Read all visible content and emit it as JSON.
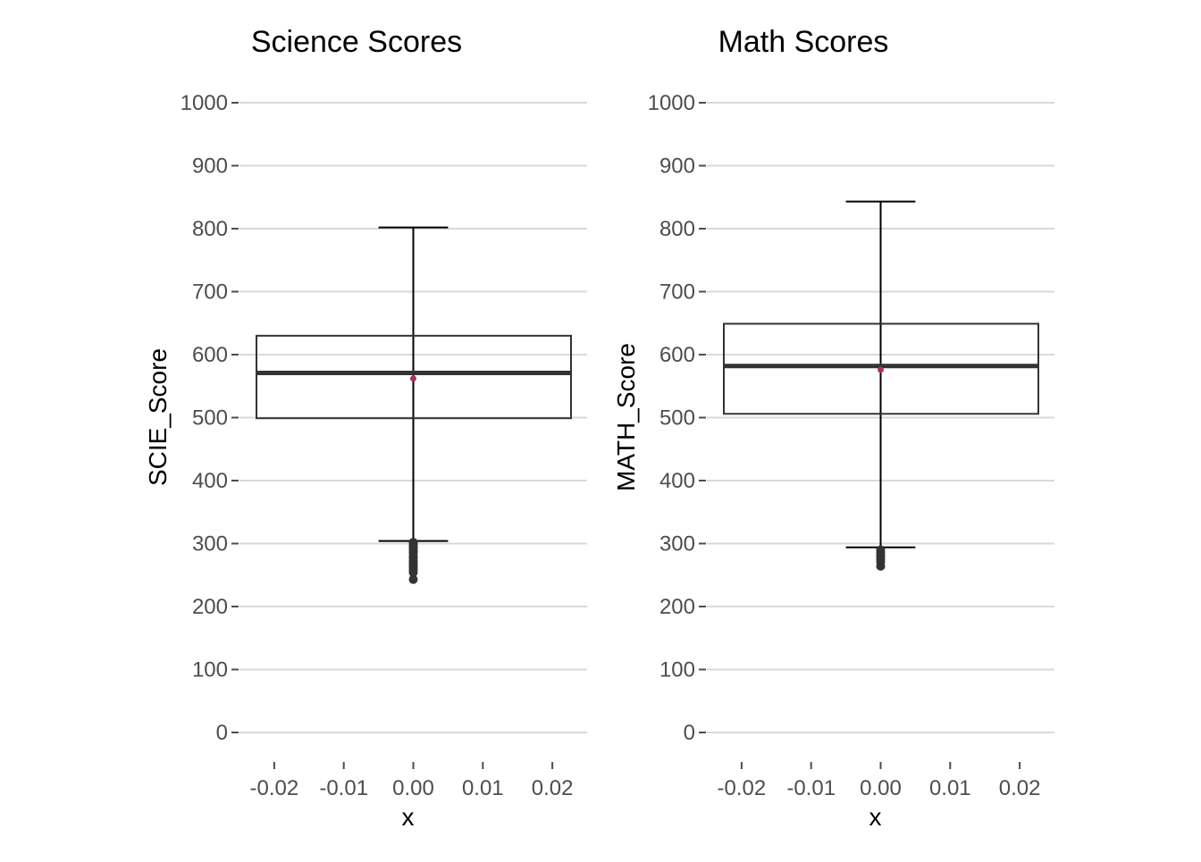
{
  "chart_data": [
    {
      "type": "boxplot",
      "title": "Science Scores",
      "xlabel": "x",
      "ylabel": "SCIE_Score",
      "ylim": [
        0,
        1000
      ],
      "xlim": [
        -0.025,
        0.025
      ],
      "y_ticks": [
        0,
        100,
        200,
        300,
        400,
        500,
        600,
        700,
        800,
        900,
        1000
      ],
      "x_ticks": [
        "-0.02",
        "-0.01",
        "0.00",
        "0.01",
        "0.02"
      ],
      "grid": "horizontal-major",
      "box": {
        "x_center": 0,
        "x_range": [
          -0.025,
          0.025
        ],
        "whisker_low": 304,
        "q1": 499,
        "median": 571,
        "q3": 630,
        "whisker_high": 802,
        "mean": 562,
        "errorbar_width": 0.01
      },
      "outliers": [
        302,
        299,
        296,
        293,
        290,
        287,
        284,
        280,
        277,
        273,
        270,
        266,
        262,
        258,
        254,
        243
      ],
      "colors": {
        "mean": "#b0305c",
        "box": "#333333",
        "whisker": "#000000"
      }
    },
    {
      "type": "boxplot",
      "title": "Math Scores",
      "xlabel": "x",
      "ylabel": "MATH_Score",
      "ylim": [
        0,
        1000
      ],
      "xlim": [
        -0.025,
        0.025
      ],
      "y_ticks": [
        0,
        100,
        200,
        300,
        400,
        500,
        600,
        700,
        800,
        900,
        1000
      ],
      "x_ticks": [
        "-0.02",
        "-0.01",
        "0.00",
        "0.01",
        "0.02"
      ],
      "grid": "horizontal-major",
      "box": {
        "x_center": 0,
        "x_range": [
          -0.025,
          0.025
        ],
        "whisker_low": 294,
        "q1": 506,
        "median": 582,
        "q3": 649,
        "whisker_high": 843,
        "mean": 576,
        "errorbar_width": 0.01
      },
      "outliers": [
        290,
        286,
        282,
        279,
        275,
        271,
        264
      ],
      "colors": {
        "mean": "#b0305c",
        "box": "#333333",
        "whisker": "#000000"
      }
    }
  ]
}
